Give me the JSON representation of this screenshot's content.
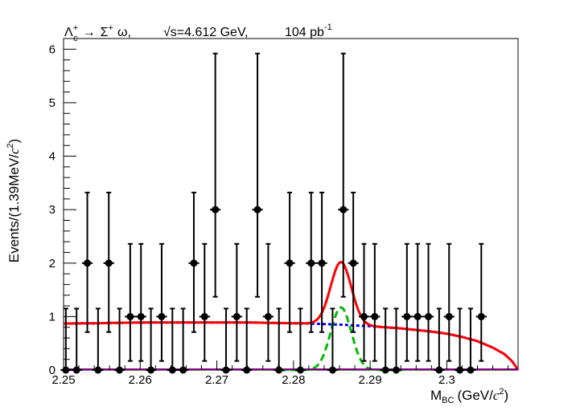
{
  "chart_data": {
    "type": "scatter",
    "title_parts": {
      "decay_particle": "Λ",
      "decay_sub": "c",
      "decay_sup": "+",
      "arrow": "→",
      "daughter_sigma": "Σ",
      "daughter_sigma_sup": "+",
      "daughter_omega": "ω,",
      "sqrt_symbol": "√",
      "energy": "s=4.612 GeV,",
      "luminosity": "104 pb",
      "lumi_sup": "-1"
    },
    "xlabel_parts": {
      "main": "M",
      "sub": "BC",
      "unit_open": "(GeV/",
      "unit_c": "c",
      "unit_sq": "2",
      "unit_close": ")"
    },
    "ylabel_parts": {
      "main": "Events/(1.39MeV/",
      "unit_c": "c",
      "unit_sq": "2",
      "unit_close": ")"
    },
    "xlim": [
      2.25,
      2.3093
    ],
    "ylim": [
      0,
      6.2
    ],
    "x_ticks": [
      2.25,
      2.26,
      2.27,
      2.28,
      2.29,
      2.3
    ],
    "x_tick_labels": [
      "2.25",
      "2.26",
      "2.27",
      "2.28",
      "2.29",
      "2.3"
    ],
    "y_ticks": [
      0,
      1,
      2,
      3,
      4,
      5,
      6
    ],
    "y_tick_labels": [
      "0",
      "1",
      "2",
      "3",
      "4",
      "5",
      "6"
    ],
    "bin_width": 0.00139,
    "colors": {
      "data": "#000000",
      "total_fit": "#ff0000",
      "signal": "#00bb00",
      "background": "#0000ff",
      "baseline": "#800080"
    },
    "data_points": [
      {
        "x": 2.2503,
        "y": 0
      },
      {
        "x": 2.2517,
        "y": 0
      },
      {
        "x": 2.2531,
        "y": 2
      },
      {
        "x": 2.2545,
        "y": 0
      },
      {
        "x": 2.2559,
        "y": 2
      },
      {
        "x": 2.2573,
        "y": 0
      },
      {
        "x": 2.2587,
        "y": 1
      },
      {
        "x": 2.2601,
        "y": 1
      },
      {
        "x": 2.2614,
        "y": 0
      },
      {
        "x": 2.2628,
        "y": 1
      },
      {
        "x": 2.2642,
        "y": 0
      },
      {
        "x": 2.2656,
        "y": 0
      },
      {
        "x": 2.267,
        "y": 2
      },
      {
        "x": 2.2684,
        "y": 1
      },
      {
        "x": 2.2698,
        "y": 3
      },
      {
        "x": 2.2712,
        "y": 0
      },
      {
        "x": 2.2726,
        "y": 1
      },
      {
        "x": 2.2739,
        "y": 0
      },
      {
        "x": 2.2753,
        "y": 3
      },
      {
        "x": 2.2767,
        "y": 1
      },
      {
        "x": 2.2781,
        "y": 0
      },
      {
        "x": 2.2795,
        "y": 2
      },
      {
        "x": 2.2809,
        "y": 0
      },
      {
        "x": 2.2823,
        "y": 2
      },
      {
        "x": 2.2837,
        "y": 2
      },
      {
        "x": 2.2851,
        "y": 0
      },
      {
        "x": 2.2865,
        "y": 3
      },
      {
        "x": 2.2878,
        "y": 2
      },
      {
        "x": 2.2892,
        "y": 1
      },
      {
        "x": 2.2906,
        "y": 1
      },
      {
        "x": 2.292,
        "y": 0
      },
      {
        "x": 2.2934,
        "y": 0
      },
      {
        "x": 2.2948,
        "y": 1
      },
      {
        "x": 2.2962,
        "y": 1
      },
      {
        "x": 2.2976,
        "y": 1
      },
      {
        "x": 2.299,
        "y": 0
      },
      {
        "x": 2.3003,
        "y": 1
      },
      {
        "x": 2.3017,
        "y": 0
      },
      {
        "x": 2.3031,
        "y": 0
      },
      {
        "x": 2.3045,
        "y": 1
      }
    ],
    "background_curve": [
      [
        2.25,
        0.87
      ],
      [
        2.254,
        0.875
      ],
      [
        2.258,
        0.885
      ],
      [
        2.262,
        0.89
      ],
      [
        2.266,
        0.89
      ],
      [
        2.27,
        0.89
      ],
      [
        2.274,
        0.89
      ],
      [
        2.278,
        0.88
      ],
      [
        2.282,
        0.87
      ],
      [
        2.286,
        0.85
      ],
      [
        2.29,
        0.82
      ],
      [
        2.294,
        0.78
      ],
      [
        2.298,
        0.72
      ],
      [
        2.3,
        0.68
      ],
      [
        2.302,
        0.62
      ],
      [
        2.304,
        0.54
      ],
      [
        2.306,
        0.42
      ],
      [
        2.3075,
        0.3
      ],
      [
        2.3085,
        0.17
      ],
      [
        2.3093,
        0.0
      ]
    ],
    "signal_peak": {
      "mean": 2.2862,
      "sigma": 0.00135,
      "amplitude": 1.17
    },
    "fit_curve_note": "total = background + signal"
  }
}
